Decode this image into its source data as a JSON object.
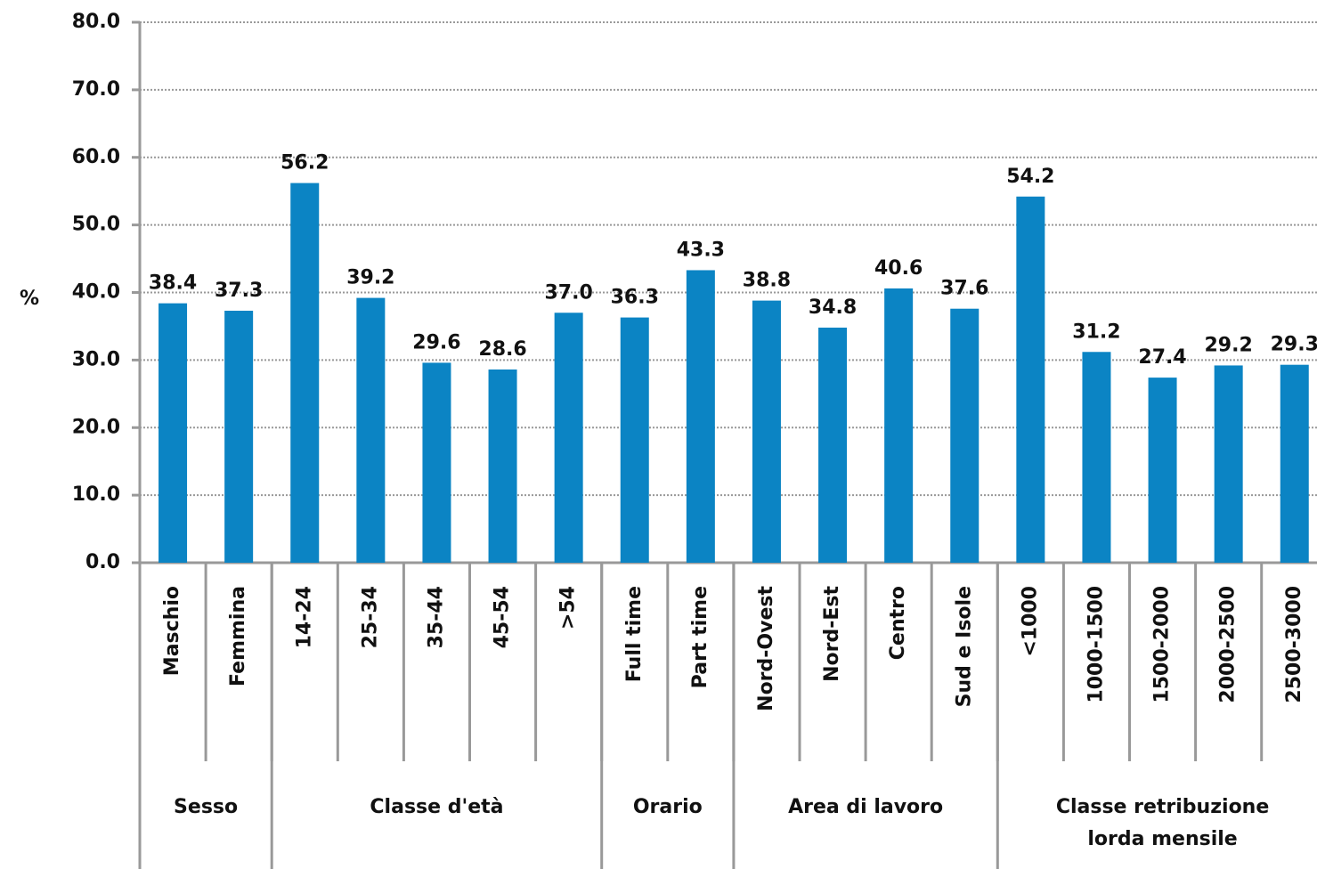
{
  "chart_data": {
    "type": "bar",
    "ylabel": "%",
    "categories": [
      "Maschio",
      "Femmina",
      "14-24",
      "25-34",
      "35-44",
      "45-54",
      ">54",
      "Full time",
      "Part time",
      "Nord-Ovest",
      "Nord-Est",
      "Centro",
      "Sud e Isole",
      "<1000",
      "1000-1500",
      "1500-2000",
      "2000-2500",
      "2500-3000"
    ],
    "values": [
      38.4,
      37.3,
      56.2,
      39.2,
      29.6,
      28.6,
      37.0,
      36.3,
      43.3,
      38.8,
      34.8,
      40.6,
      37.6,
      54.2,
      31.2,
      27.4,
      29.2,
      29.3
    ],
    "value_labels": [
      "38.4",
      "37.3",
      "56.2",
      "39.2",
      "29.6",
      "28.6",
      "37.0",
      "36.3",
      "43.3",
      "38.8",
      "34.8",
      "40.6",
      "37.6",
      "54.2",
      "31.2",
      "27.4",
      "29.2",
      "29.3"
    ],
    "groups": [
      {
        "name": [
          "Sesso"
        ],
        "count": 2
      },
      {
        "name": [
          "Classe d'età"
        ],
        "count": 5
      },
      {
        "name": [
          "Orario"
        ],
        "count": 2
      },
      {
        "name": [
          "Area di lavoro"
        ],
        "count": 4
      },
      {
        "name": [
          "Classe retribuzione",
          "lorda mensile"
        ],
        "count": 5
      }
    ],
    "color": "#0b84c4",
    "ylim": [
      0,
      80
    ],
    "yticks": [
      {
        "value": 0,
        "label": "0.0"
      },
      {
        "value": 10,
        "label": "10.0"
      },
      {
        "value": 20,
        "label": "20.0"
      },
      {
        "value": 30,
        "label": "30.0"
      },
      {
        "value": 40,
        "label": "40.0"
      },
      {
        "value": 50,
        "label": "50.0"
      },
      {
        "value": 60,
        "label": "60.0"
      },
      {
        "value": 70,
        "label": "70.0"
      },
      {
        "value": 80,
        "label": "80.0"
      }
    ],
    "grid": true
  }
}
